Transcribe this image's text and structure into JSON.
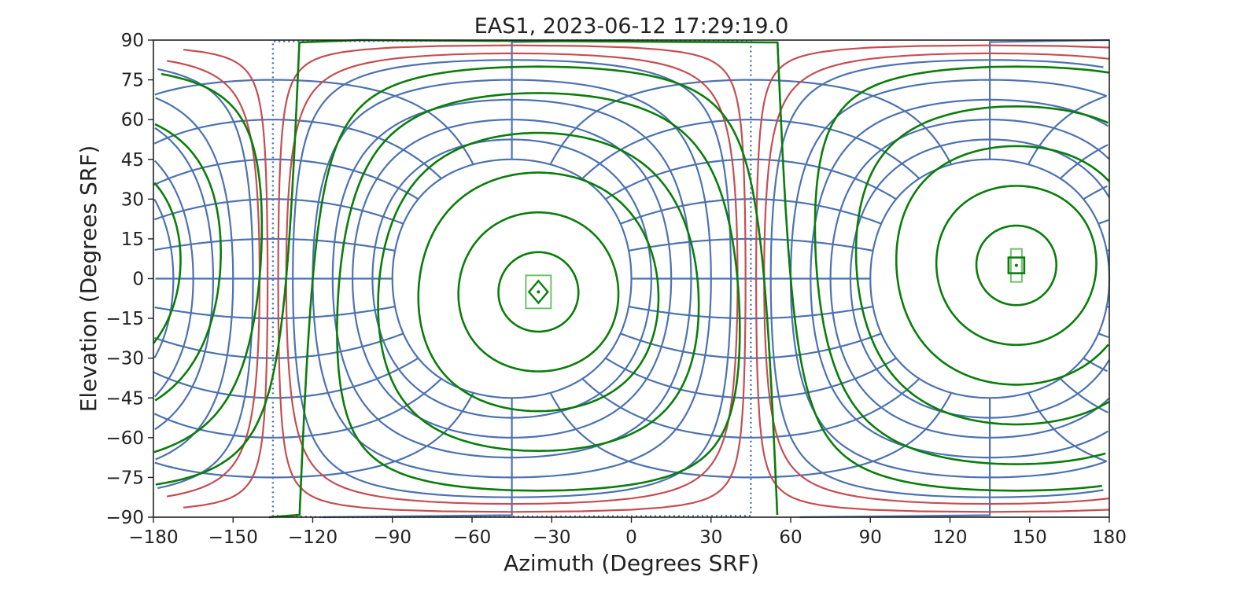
{
  "chart_data": {
    "type": "line",
    "title": "EAS1, 2023-06-12 17:29:19.0",
    "xlabel": "Azimuth (Degrees SRF)",
    "ylabel": "Elevation (Degrees SRF)",
    "xlim": [
      -180,
      180
    ],
    "ylim": [
      -90,
      90
    ],
    "xticks": [
      -180,
      -150,
      -120,
      -90,
      -60,
      -30,
      0,
      30,
      60,
      90,
      120,
      150,
      180
    ],
    "yticks": [
      90,
      75,
      60,
      45,
      30,
      15,
      0,
      -15,
      -30,
      -45,
      -60,
      -75,
      -90
    ],
    "xtick_labels": [
      "−180",
      "−150",
      "−120",
      "−90",
      "−60",
      "−30",
      "0",
      "30",
      "60",
      "90",
      "120",
      "150",
      "180"
    ],
    "ytick_labels": [
      "90",
      "75",
      "60",
      "45",
      "30",
      "15",
      "0",
      "−15",
      "−30",
      "−45",
      "−60",
      "−75",
      "−90"
    ],
    "grid": false,
    "colors": {
      "blue": "#4c72b0",
      "red": "#c44e52",
      "green": "#0a7d0a",
      "light_green": "#6ec26e"
    },
    "instrument_frame": {
      "boresight_axes": [
        [
          -45,
          0
        ],
        [
          135,
          0
        ]
      ],
      "blue_ring_angles": [
        45,
        52.5,
        60,
        67.5,
        75,
        82.5
      ],
      "red_ring_angles": [
        85,
        88
      ],
      "blue_meridian_step": 15
    },
    "field_frame": {
      "diamond_marker": [
        -35,
        -5
      ],
      "square_marker": [
        145,
        5
      ],
      "green_ring_angles": [
        15,
        30,
        45,
        60,
        75,
        85
      ]
    }
  }
}
